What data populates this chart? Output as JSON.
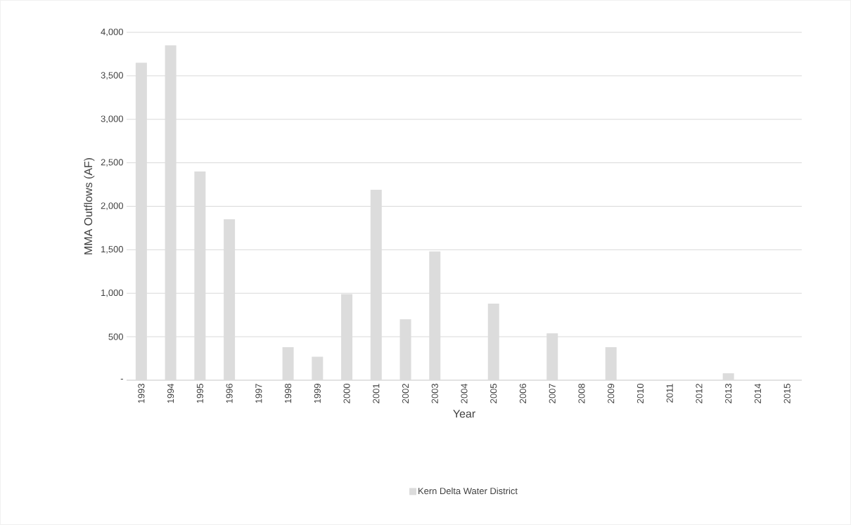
{
  "chart_data": {
    "type": "bar",
    "xlabel": "Year",
    "ylabel": "MMA Outflows (AF)",
    "categories": [
      "1993",
      "1994",
      "1995",
      "1996",
      "1997",
      "1998",
      "1999",
      "2000",
      "2001",
      "2002",
      "2003",
      "2004",
      "2005",
      "2006",
      "2007",
      "2008",
      "2009",
      "2010",
      "2011",
      "2012",
      "2013",
      "2014",
      "2015"
    ],
    "series": [
      {
        "name": "Kern Delta Water District",
        "color": "#dcdcdc",
        "values": [
          3650,
          3850,
          2400,
          1850,
          0,
          380,
          270,
          990,
          2190,
          700,
          1480,
          0,
          880,
          0,
          540,
          0,
          380,
          0,
          0,
          0,
          80,
          0,
          0
        ]
      }
    ],
    "ylim": [
      0,
      4000
    ],
    "yticks": [
      {
        "value": 0,
        "label": "-"
      },
      500,
      {
        "value": 1000,
        "label": "1,000"
      },
      {
        "value": 1500,
        "label": "1,500"
      },
      {
        "value": 2000,
        "label": "2,000"
      },
      {
        "value": 2500,
        "label": "2,500"
      },
      {
        "value": 3000,
        "label": "3,000"
      },
      {
        "value": 3500,
        "label": "3,500"
      },
      {
        "value": 4000,
        "label": "4,000"
      }
    ],
    "grid": "y",
    "legend": "bottom"
  }
}
